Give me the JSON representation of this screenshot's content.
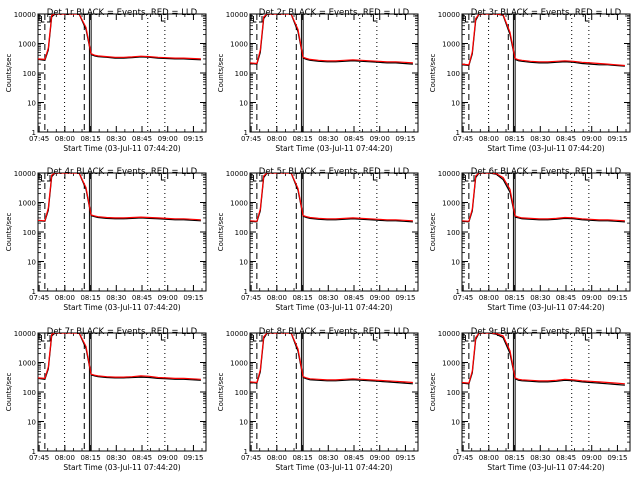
{
  "figure": {
    "ylabel": "Counts/sec",
    "xlabel": "Start Time (03-Jul-11 07:44:20)",
    "x_ticks": [
      "07:45",
      "08:00",
      "08:15",
      "08:30",
      "08:45",
      "09:00",
      "09:15"
    ],
    "y_ticks": [
      "1",
      "10",
      "100",
      "1000",
      "10000"
    ],
    "colors": {
      "events": "#000000",
      "lld": "#ff0000",
      "axes": "#000000",
      "background": "#ffffff"
    }
  },
  "chart_data": [
    {
      "type": "line",
      "title": "Det 1r BLACK = Events, RED = LLD",
      "xlabel": "Start Time (03-Jul-11 07:44:20)",
      "ylabel": "Counts/sec",
      "x_unit": "minutes after 07:44:20",
      "xlim": [
        0,
        98
      ],
      "ylim": [
        1,
        10000
      ],
      "yscale": "log",
      "grid": false,
      "x": [
        0,
        4,
        6,
        8,
        10,
        12,
        16,
        20,
        24,
        28,
        31,
        33,
        35,
        40,
        45,
        50,
        55,
        60,
        65,
        70,
        75,
        80,
        85,
        90,
        95
      ],
      "series": [
        {
          "name": "Events",
          "values": [
            290,
            270,
            600,
            8000,
            10000,
            10000,
            10000,
            10000,
            10000,
            3000,
            420,
            380,
            360,
            340,
            320,
            320,
            330,
            350,
            340,
            320,
            310,
            300,
            300,
            290,
            280
          ]
        },
        {
          "name": "LLD",
          "values": [
            300,
            290,
            700,
            9000,
            10000,
            10000,
            10000,
            10000,
            10000,
            3500,
            450,
            400,
            380,
            360,
            340,
            340,
            350,
            370,
            360,
            340,
            330,
            320,
            320,
            310,
            300
          ]
        }
      ]
    },
    {
      "type": "line",
      "title": "Det 2r BLACK = Events, RED = LLD",
      "xlabel": "Start Time (03-Jul-11 07:44:20)",
      "ylabel": "Counts/sec",
      "x_unit": "minutes after 07:44:20",
      "xlim": [
        0,
        98
      ],
      "ylim": [
        1,
        10000
      ],
      "yscale": "log",
      "grid": false,
      "x": [
        0,
        4,
        6,
        8,
        10,
        12,
        16,
        20,
        24,
        28,
        31,
        33,
        35,
        40,
        45,
        50,
        55,
        60,
        65,
        70,
        75,
        80,
        85,
        90,
        95
      ],
      "series": [
        {
          "name": "Events",
          "values": [
            210,
            200,
            500,
            7000,
            10000,
            10000,
            10000,
            10000,
            10000,
            2500,
            320,
            290,
            270,
            250,
            240,
            240,
            250,
            260,
            250,
            240,
            230,
            220,
            220,
            210,
            200
          ]
        },
        {
          "name": "LLD",
          "values": [
            220,
            210,
            600,
            8000,
            10000,
            10000,
            10000,
            10000,
            10000,
            3000,
            340,
            310,
            290,
            270,
            260,
            260,
            270,
            280,
            270,
            260,
            250,
            240,
            240,
            230,
            220
          ]
        }
      ]
    },
    {
      "type": "line",
      "title": "Det 3r BLACK = Events, RED = LLD",
      "xlabel": "Start Time (03-Jul-11 07:44:20)",
      "ylabel": "Counts/sec",
      "x_unit": "minutes after 07:44:20",
      "xlim": [
        0,
        98
      ],
      "ylim": [
        1,
        10000
      ],
      "yscale": "log",
      "grid": false,
      "x": [
        0,
        4,
        6,
        8,
        10,
        12,
        16,
        20,
        24,
        28,
        31,
        33,
        35,
        40,
        45,
        50,
        55,
        60,
        65,
        70,
        75,
        80,
        85,
        90,
        95
      ],
      "series": [
        {
          "name": "Events",
          "values": [
            190,
            180,
            450,
            6000,
            10000,
            10000,
            10000,
            10000,
            9000,
            2000,
            290,
            260,
            250,
            230,
            220,
            220,
            230,
            240,
            230,
            210,
            200,
            190,
            190,
            180,
            170
          ]
        },
        {
          "name": "LLD",
          "values": [
            200,
            190,
            520,
            7000,
            10000,
            10000,
            10000,
            10000,
            9500,
            2400,
            310,
            280,
            270,
            250,
            240,
            240,
            250,
            260,
            250,
            230,
            220,
            210,
            200,
            190,
            180
          ]
        }
      ]
    },
    {
      "type": "line",
      "title": "Det 4r BLACK = Events, RED = LLD",
      "xlabel": "Start Time (03-Jul-11 07:44:20)",
      "ylabel": "Counts/sec",
      "x_unit": "minutes after 07:44:20",
      "xlim": [
        0,
        98
      ],
      "ylim": [
        1,
        10000
      ],
      "yscale": "log",
      "grid": false,
      "x": [
        0,
        4,
        6,
        8,
        10,
        12,
        16,
        20,
        24,
        28,
        31,
        33,
        35,
        40,
        45,
        50,
        55,
        60,
        65,
        70,
        75,
        80,
        85,
        90,
        95
      ],
      "series": [
        {
          "name": "Events",
          "values": [
            240,
            230,
            550,
            7500,
            10000,
            10000,
            10000,
            10000,
            10000,
            2800,
            360,
            330,
            310,
            290,
            280,
            280,
            290,
            300,
            290,
            280,
            270,
            260,
            260,
            250,
            240
          ]
        },
        {
          "name": "LLD",
          "values": [
            250,
            240,
            650,
            8500,
            10000,
            10000,
            10000,
            10000,
            10000,
            3200,
            380,
            350,
            330,
            310,
            300,
            300,
            310,
            320,
            310,
            300,
            290,
            280,
            280,
            270,
            260
          ]
        }
      ]
    },
    {
      "type": "line",
      "title": "Det 5r BLACK = Events, RED = LLD",
      "xlabel": "Start Time (03-Jul-11 07:44:20)",
      "ylabel": "Counts/sec",
      "x_unit": "minutes after 07:44:20",
      "xlim": [
        0,
        98
      ],
      "ylim": [
        1,
        10000
      ],
      "yscale": "log",
      "grid": false,
      "x": [
        0,
        4,
        6,
        8,
        10,
        12,
        16,
        20,
        24,
        28,
        31,
        33,
        35,
        40,
        45,
        50,
        55,
        60,
        65,
        70,
        75,
        80,
        85,
        90,
        95
      ],
      "series": [
        {
          "name": "Events",
          "values": [
            230,
            220,
            520,
            7000,
            10000,
            10000,
            10000,
            10000,
            10000,
            2600,
            340,
            310,
            290,
            270,
            260,
            260,
            270,
            280,
            270,
            260,
            250,
            240,
            240,
            230,
            220
          ]
        },
        {
          "name": "LLD",
          "values": [
            240,
            230,
            600,
            8000,
            10000,
            10000,
            10000,
            10000,
            10000,
            3000,
            360,
            330,
            310,
            290,
            280,
            280,
            290,
            300,
            290,
            280,
            270,
            260,
            260,
            250,
            240
          ]
        }
      ]
    },
    {
      "type": "line",
      "title": "Det 6r BLACK = Events, RED = LLD",
      "xlabel": "Start Time (03-Jul-11 07:44:20)",
      "ylabel": "Counts/sec",
      "x_unit": "minutes after 07:44:20",
      "xlim": [
        0,
        98
      ],
      "ylim": [
        1,
        10000
      ],
      "yscale": "log",
      "grid": false,
      "x": [
        0,
        4,
        6,
        8,
        10,
        12,
        16,
        20,
        24,
        28,
        31,
        33,
        35,
        40,
        45,
        50,
        55,
        60,
        65,
        70,
        75,
        80,
        85,
        90,
        95
      ],
      "series": [
        {
          "name": "Events",
          "values": [
            230,
            220,
            520,
            7000,
            10000,
            10000,
            10000,
            9000,
            6000,
            2200,
            320,
            300,
            280,
            270,
            260,
            260,
            270,
            290,
            280,
            260,
            250,
            240,
            240,
            230,
            220
          ]
        },
        {
          "name": "LLD",
          "values": [
            240,
            230,
            600,
            8000,
            10000,
            10000,
            10000,
            9500,
            7000,
            2800,
            350,
            320,
            300,
            290,
            280,
            280,
            290,
            310,
            300,
            280,
            270,
            260,
            260,
            250,
            240
          ]
        }
      ]
    },
    {
      "type": "line",
      "title": "Det 7r BLACK = Events, RED = LLD",
      "xlabel": "Start Time (03-Jul-11 07:44:20)",
      "ylabel": "Counts/sec",
      "x_unit": "minutes after 07:44:20",
      "xlim": [
        0,
        98
      ],
      "ylim": [
        1,
        10000
      ],
      "yscale": "log",
      "grid": false,
      "x": [
        0,
        4,
        6,
        8,
        10,
        12,
        16,
        20,
        24,
        28,
        31,
        33,
        35,
        40,
        45,
        50,
        55,
        60,
        65,
        70,
        75,
        80,
        85,
        90,
        95
      ],
      "series": [
        {
          "name": "Events",
          "values": [
            290,
            270,
            600,
            8000,
            10000,
            10000,
            10000,
            10000,
            10000,
            3000,
            380,
            350,
            330,
            310,
            300,
            300,
            310,
            320,
            310,
            290,
            280,
            270,
            270,
            260,
            250
          ]
        },
        {
          "name": "LLD",
          "values": [
            300,
            290,
            700,
            9000,
            10000,
            10000,
            10000,
            10000,
            10000,
            3500,
            400,
            370,
            350,
            330,
            320,
            320,
            330,
            350,
            340,
            310,
            300,
            290,
            290,
            280,
            270
          ]
        }
      ]
    },
    {
      "type": "line",
      "title": "Det 8r BLACK = Events, RED = LLD",
      "xlabel": "Start Time (03-Jul-11 07:44:20)",
      "ylabel": "Counts/sec",
      "x_unit": "minutes after 07:44:20",
      "xlim": [
        0,
        98
      ],
      "ylim": [
        1,
        10000
      ],
      "yscale": "log",
      "grid": false,
      "x": [
        0,
        4,
        6,
        8,
        10,
        12,
        16,
        20,
        24,
        28,
        31,
        33,
        35,
        40,
        45,
        50,
        55,
        60,
        65,
        70,
        75,
        80,
        85,
        90,
        95
      ],
      "series": [
        {
          "name": "Events",
          "values": [
            210,
            200,
            480,
            6500,
            10000,
            10000,
            10000,
            10000,
            10000,
            2400,
            310,
            280,
            260,
            250,
            240,
            240,
            250,
            260,
            250,
            240,
            230,
            220,
            210,
            200,
            190
          ]
        },
        {
          "name": "LLD",
          "values": [
            220,
            210,
            560,
            7500,
            10000,
            10000,
            10000,
            10000,
            10000,
            2900,
            330,
            300,
            280,
            270,
            260,
            260,
            270,
            280,
            270,
            260,
            250,
            240,
            230,
            220,
            210
          ]
        }
      ]
    },
    {
      "type": "line",
      "title": "Det 9r BLACK = Events, RED = LLD",
      "xlabel": "Start Time (03-Jul-11 07:44:20)",
      "ylabel": "Counts/sec",
      "x_unit": "minutes after 07:44:20",
      "xlim": [
        0,
        98
      ],
      "ylim": [
        1,
        10000
      ],
      "yscale": "log",
      "grid": false,
      "x": [
        0,
        4,
        6,
        8,
        10,
        12,
        16,
        20,
        24,
        28,
        31,
        33,
        35,
        40,
        45,
        50,
        55,
        60,
        65,
        70,
        75,
        80,
        85,
        90,
        95
      ],
      "series": [
        {
          "name": "Events",
          "values": [
            200,
            190,
            450,
            6000,
            10000,
            10000,
            10000,
            9000,
            7000,
            2000,
            280,
            250,
            240,
            230,
            220,
            220,
            230,
            250,
            240,
            220,
            210,
            200,
            190,
            180,
            170
          ]
        },
        {
          "name": "LLD",
          "values": [
            210,
            200,
            520,
            7000,
            10000,
            10000,
            10000,
            9500,
            8000,
            2500,
            300,
            270,
            260,
            250,
            240,
            240,
            250,
            270,
            260,
            240,
            230,
            220,
            210,
            200,
            190
          ]
        }
      ]
    }
  ]
}
